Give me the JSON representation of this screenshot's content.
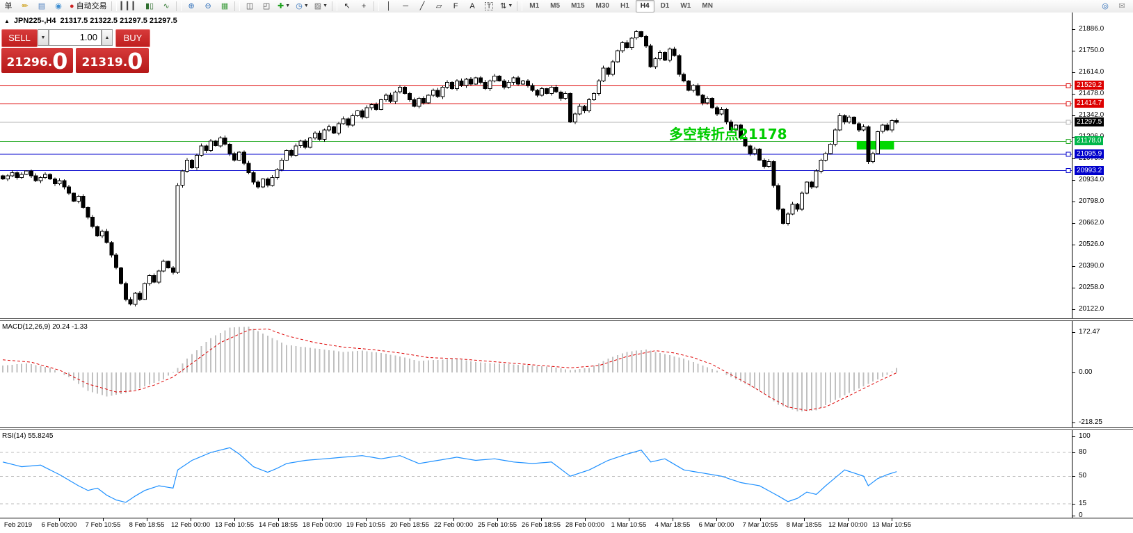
{
  "toolbar": {
    "items": [
      {
        "name": "new-order-button",
        "glyph": "单",
        "color": "#222222"
      },
      {
        "name": "highlighter-icon",
        "glyph": "✏",
        "color": "#c99700"
      },
      {
        "name": "chart-window-icon",
        "glyph": "▤",
        "color": "#4d7fbe"
      },
      {
        "name": "signal-icon",
        "glyph": "◉",
        "color": "#3f8fd2"
      },
      {
        "name": "autotrade-button",
        "glyph": "●",
        "color": "#cc2222",
        "label": "自动交易"
      },
      {
        "sep": true
      },
      {
        "name": "bar-chart-icon",
        "glyph": "▎▎▎",
        "color": "#444444"
      },
      {
        "name": "candlestick-chart-icon",
        "glyph": "▮▯",
        "color": "#2f6f2f"
      },
      {
        "name": "line-chart-icon",
        "glyph": "∿",
        "color": "#3a7d3a"
      },
      {
        "sep": true
      },
      {
        "name": "zoom-in-icon",
        "glyph": "⊕",
        "color": "#2b6cb8"
      },
      {
        "name": "zoom-out-icon",
        "glyph": "⊖",
        "color": "#2b6cb8"
      },
      {
        "name": "tile-windows-icon",
        "glyph": "▦",
        "color": "#3f9e3f"
      },
      {
        "sep": true
      },
      {
        "name": "indicators-window-icon",
        "glyph": "◫",
        "color": "#444444"
      },
      {
        "name": "indicator-list-icon",
        "glyph": "◰",
        "color": "#444444"
      },
      {
        "name": "add-indicator-button",
        "glyph": "✚",
        "color": "#1da11d",
        "caret": true
      },
      {
        "name": "timeframes-button",
        "glyph": "◷",
        "color": "#2b6cb8",
        "caret": true
      },
      {
        "name": "templates-button",
        "glyph": "▨",
        "color": "#6b6b6b",
        "caret": true
      },
      {
        "sep": true
      },
      {
        "name": "cursor-tool",
        "glyph": "↖",
        "color": "#222222"
      },
      {
        "name": "crosshair-tool",
        "glyph": "+",
        "color": "#222222"
      },
      {
        "sep": true
      },
      {
        "name": "vertical-line-tool",
        "glyph": "│",
        "color": "#222222"
      },
      {
        "name": "horizontal-line-tool",
        "glyph": "─",
        "color": "#222222"
      },
      {
        "name": "trendline-tool",
        "glyph": "╱",
        "color": "#222222"
      },
      {
        "name": "channel-tool",
        "glyph": "▱",
        "color": "#222222"
      },
      {
        "name": "fibonacci-tool",
        "glyph": "F",
        "color": "#222222"
      },
      {
        "name": "text-tool",
        "glyph": "A",
        "color": "#222222"
      },
      {
        "name": "label-tool",
        "glyph": "T",
        "color": "#222222",
        "boxed": true
      },
      {
        "name": "arrows-tool",
        "glyph": "⇅",
        "color": "#222222",
        "caret": true
      },
      {
        "sep": true
      }
    ],
    "timeframes": {
      "options": [
        "M1",
        "M5",
        "M15",
        "M30",
        "H1",
        "H4",
        "D1",
        "W1",
        "MN"
      ],
      "active": "H4"
    },
    "right_items": [
      {
        "name": "search-icon",
        "glyph": "◎",
        "color": "#2b6cb8"
      },
      {
        "name": "chat-icon",
        "glyph": "✉",
        "color": "#888888"
      }
    ]
  },
  "header": {
    "collapse_icon": "▲",
    "symbol": "JPN225-,H4",
    "ohlc": "21317.5 21322.5 21297.5 21297.5"
  },
  "trade_panel": {
    "sell_label": "SELL",
    "buy_label": "BUY",
    "volume": "1.00",
    "down_icon": "▼",
    "up_icon": "▲",
    "sell_price": {
      "int": "21296",
      "dot": ".",
      "frac": "0"
    },
    "buy_price": {
      "int": "21319",
      "dot": ".",
      "frac": "0"
    }
  },
  "annotation": {
    "text": "多空转折点21178",
    "color": "#00cc00"
  },
  "indicators": {
    "macd_label": "MACD(12,26,9) 20.24 -1.33",
    "rsi_label": "RSI(14) 55.8245"
  },
  "price_axis": {
    "ticks": [
      "21886.0",
      "21750.0",
      "21614.0",
      "21478.0",
      "21342.0",
      "21206.0",
      "21070.0",
      "20934.0",
      "20798.0",
      "20662.0",
      "20526.0",
      "20390.0",
      "20258.0",
      "20122.0"
    ],
    "badges": [
      {
        "value": "21529.2",
        "price": 21529.2,
        "color": "#dd0000"
      },
      {
        "value": "21414.7",
        "price": 21414.7,
        "color": "#dd0000"
      },
      {
        "value": "21297.5",
        "price": 21297.5,
        "color": "#000000"
      },
      {
        "value": "21178.0",
        "price": 21178.0,
        "color": "#00b64a"
      },
      {
        "value": "21095.9",
        "price": 21095.9,
        "color": "#0000cc"
      },
      {
        "value": "20993.2",
        "price": 20993.2,
        "color": "#0000cc"
      }
    ]
  },
  "macd_axis": [
    {
      "label": "172.47",
      "v": 172.47
    },
    {
      "label": "0.00",
      "v": 0
    },
    {
      "label": "-218.25",
      "v": -218.25
    }
  ],
  "rsi_axis": [
    {
      "label": "100",
      "v": 100
    },
    {
      "label": "80",
      "v": 80
    },
    {
      "label": "50",
      "v": 50
    },
    {
      "label": "15",
      "v": 15
    },
    {
      "label": "0",
      "v": 0
    }
  ],
  "time_axis": {
    "labels": [
      "Feb 2019",
      "6 Feb 00:00",
      "7 Feb 10:55",
      "8 Feb 18:55",
      "12 Feb 00:00",
      "13 Feb 10:55",
      "14 Feb 18:55",
      "18 Feb 00:00",
      "19 Feb 10:55",
      "20 Feb 18:55",
      "22 Feb 00:00",
      "25 Feb 10:55",
      "26 Feb 18:55",
      "28 Feb 00:00",
      "1 Mar 10:55",
      "4 Mar 18:55",
      "6 Mar 00:00",
      "7 Mar 10:55",
      "8 Mar 18:55",
      "12 Mar 00:00",
      "13 Mar 10:55"
    ]
  },
  "chart_data": [
    {
      "type": "candlestick",
      "title": "JPN225- H4",
      "current_ohlc": {
        "open": 21317.5,
        "high": 21322.5,
        "low": 21297.5,
        "close": 21297.5
      },
      "ylim": [
        20060,
        21990
      ],
      "y_ticks": [
        21886,
        21750,
        21614,
        21478,
        21342,
        21206,
        21070,
        20934,
        20798,
        20662,
        20526,
        20390,
        20258,
        20122
      ],
      "hlines": [
        {
          "price": 21529.2,
          "color": "#dd0000",
          "role": "resistance"
        },
        {
          "price": 21414.7,
          "color": "#dd0000",
          "role": "resistance"
        },
        {
          "price": 21297.5,
          "color": "#b6b6b6",
          "role": "current-price"
        },
        {
          "price": 21178.0,
          "color": "#2fae2f",
          "role": "pivot"
        },
        {
          "price": 21095.9,
          "color": "#0000cc",
          "role": "support"
        },
        {
          "price": 20993.2,
          "color": "#0000cc",
          "role": "support"
        }
      ],
      "highlight_box": {
        "from_index": 181,
        "to_index": 188,
        "price_top": 21180,
        "price_bottom": 21126,
        "color": "#00d800"
      },
      "closes": [
        20940,
        20960,
        20980,
        20950,
        20970,
        20990,
        20960,
        20930,
        20950,
        20970,
        20940,
        20910,
        20930,
        20890,
        20850,
        20800,
        20830,
        20760,
        20700,
        20640,
        20580,
        20610,
        20540,
        20460,
        20380,
        20280,
        20180,
        20150,
        20220,
        20180,
        20280,
        20330,
        20290,
        20360,
        20420,
        20380,
        20350,
        20900,
        20990,
        21060,
        21010,
        21090,
        21150,
        21120,
        21180,
        21150,
        21200,
        21160,
        21100,
        21060,
        21110,
        21040,
        20980,
        20920,
        20890,
        20940,
        20900,
        20950,
        21000,
        21060,
        21120,
        21090,
        21150,
        21180,
        21140,
        21200,
        21230,
        21190,
        21250,
        21270,
        21230,
        21290,
        21320,
        21280,
        21340,
        21370,
        21330,
        21390,
        21410,
        21380,
        21440,
        21470,
        21430,
        21490,
        21520,
        21480,
        21440,
        21400,
        21450,
        21420,
        21470,
        21500,
        21460,
        21520,
        21550,
        21510,
        21560,
        21530,
        21570,
        21540,
        21580,
        21550,
        21510,
        21560,
        21590,
        21560,
        21520,
        21550,
        21580,
        21540,
        21560,
        21530,
        21500,
        21470,
        21510,
        21480,
        21520,
        21490,
        21450,
        21480,
        21300,
        21350,
        21400,
        21370,
        21440,
        21480,
        21560,
        21640,
        21600,
        21680,
        21750,
        21800,
        21770,
        21830,
        21870,
        21840,
        21780,
        21650,
        21700,
        21740,
        21690,
        21760,
        21720,
        21600,
        21560,
        21500,
        21530,
        21470,
        21420,
        21450,
        21390,
        21350,
        21380,
        21300,
        21250,
        21280,
        21200,
        21150,
        21100,
        21130,
        21060,
        21020,
        21050,
        20900,
        20750,
        20660,
        20720,
        20780,
        20750,
        20850,
        20920,
        20890,
        20990,
        21060,
        21100,
        21160,
        21250,
        21340,
        21300,
        21330,
        21290,
        21250,
        21270,
        21050,
        21100,
        21240,
        21280,
        21250,
        21310,
        21297.5
      ]
    },
    {
      "type": "macd",
      "name": "MACD(12,26,9)",
      "main_last": 20.24,
      "signal_last": -1.33,
      "ylim": [
        -218.25,
        172.47
      ],
      "histogram_anchors": [
        [
          0,
          30
        ],
        [
          5,
          40
        ],
        [
          10,
          20
        ],
        [
          14,
          -20
        ],
        [
          18,
          -80
        ],
        [
          22,
          -105
        ],
        [
          26,
          -90
        ],
        [
          30,
          -60
        ],
        [
          34,
          -30
        ],
        [
          37,
          20
        ],
        [
          40,
          80
        ],
        [
          44,
          150
        ],
        [
          48,
          195
        ],
        [
          52,
          200
        ],
        [
          56,
          160
        ],
        [
          60,
          120
        ],
        [
          64,
          110
        ],
        [
          68,
          100
        ],
        [
          72,
          90
        ],
        [
          76,
          95
        ],
        [
          80,
          85
        ],
        [
          84,
          70
        ],
        [
          88,
          50
        ],
        [
          92,
          55
        ],
        [
          96,
          60
        ],
        [
          100,
          45
        ],
        [
          104,
          40
        ],
        [
          108,
          35
        ],
        [
          112,
          30
        ],
        [
          116,
          25
        ],
        [
          120,
          10
        ],
        [
          124,
          20
        ],
        [
          128,
          60
        ],
        [
          132,
          90
        ],
        [
          136,
          100
        ],
        [
          140,
          80
        ],
        [
          144,
          60
        ],
        [
          148,
          30
        ],
        [
          152,
          0
        ],
        [
          156,
          -40
        ],
        [
          160,
          -80
        ],
        [
          164,
          -140
        ],
        [
          168,
          -170
        ],
        [
          172,
          -165
        ],
        [
          176,
          -120
        ],
        [
          180,
          -80
        ],
        [
          184,
          -40
        ],
        [
          187,
          -10
        ],
        [
          189,
          20.24
        ]
      ],
      "signal_anchors": [
        [
          0,
          55
        ],
        [
          6,
          45
        ],
        [
          12,
          10
        ],
        [
          18,
          -50
        ],
        [
          24,
          -85
        ],
        [
          28,
          -80
        ],
        [
          32,
          -55
        ],
        [
          36,
          -20
        ],
        [
          40,
          40
        ],
        [
          46,
          130
        ],
        [
          52,
          185
        ],
        [
          56,
          190
        ],
        [
          60,
          160
        ],
        [
          66,
          130
        ],
        [
          72,
          110
        ],
        [
          78,
          100
        ],
        [
          84,
          85
        ],
        [
          90,
          65
        ],
        [
          96,
          60
        ],
        [
          102,
          50
        ],
        [
          108,
          40
        ],
        [
          114,
          30
        ],
        [
          120,
          20
        ],
        [
          126,
          30
        ],
        [
          132,
          70
        ],
        [
          138,
          95
        ],
        [
          142,
          85
        ],
        [
          146,
          65
        ],
        [
          150,
          35
        ],
        [
          154,
          -10
        ],
        [
          158,
          -55
        ],
        [
          162,
          -105
        ],
        [
          166,
          -150
        ],
        [
          170,
          -165
        ],
        [
          174,
          -150
        ],
        [
          178,
          -110
        ],
        [
          182,
          -70
        ],
        [
          186,
          -30
        ],
        [
          189,
          -1.33
        ]
      ]
    },
    {
      "type": "rsi",
      "name": "RSI(14)",
      "last": 55.8245,
      "levels": [
        80,
        50,
        15
      ],
      "ylim": [
        0,
        100
      ],
      "anchors": [
        [
          0,
          68
        ],
        [
          4,
          62
        ],
        [
          8,
          64
        ],
        [
          12,
          52
        ],
        [
          14,
          45
        ],
        [
          16,
          38
        ],
        [
          18,
          32
        ],
        [
          20,
          35
        ],
        [
          22,
          26
        ],
        [
          24,
          20
        ],
        [
          26,
          17
        ],
        [
          28,
          25
        ],
        [
          30,
          32
        ],
        [
          33,
          38
        ],
        [
          36,
          35
        ],
        [
          37,
          58
        ],
        [
          40,
          70
        ],
        [
          44,
          80
        ],
        [
          48,
          86
        ],
        [
          50,
          78
        ],
        [
          53,
          62
        ],
        [
          56,
          55
        ],
        [
          58,
          60
        ],
        [
          60,
          66
        ],
        [
          64,
          70
        ],
        [
          68,
          72
        ],
        [
          72,
          74
        ],
        [
          76,
          76
        ],
        [
          80,
          72
        ],
        [
          84,
          76
        ],
        [
          88,
          66
        ],
        [
          92,
          70
        ],
        [
          96,
          74
        ],
        [
          100,
          70
        ],
        [
          104,
          72
        ],
        [
          108,
          68
        ],
        [
          112,
          66
        ],
        [
          116,
          68
        ],
        [
          120,
          50
        ],
        [
          124,
          58
        ],
        [
          128,
          70
        ],
        [
          132,
          78
        ],
        [
          135,
          83
        ],
        [
          137,
          68
        ],
        [
          140,
          72
        ],
        [
          144,
          58
        ],
        [
          148,
          54
        ],
        [
          152,
          50
        ],
        [
          156,
          42
        ],
        [
          160,
          38
        ],
        [
          164,
          25
        ],
        [
          166,
          18
        ],
        [
          168,
          22
        ],
        [
          170,
          30
        ],
        [
          172,
          27
        ],
        [
          174,
          38
        ],
        [
          176,
          48
        ],
        [
          178,
          58
        ],
        [
          180,
          54
        ],
        [
          182,
          50
        ],
        [
          183,
          38
        ],
        [
          185,
          47
        ],
        [
          187,
          52
        ],
        [
          189,
          55.8245
        ]
      ]
    }
  ]
}
